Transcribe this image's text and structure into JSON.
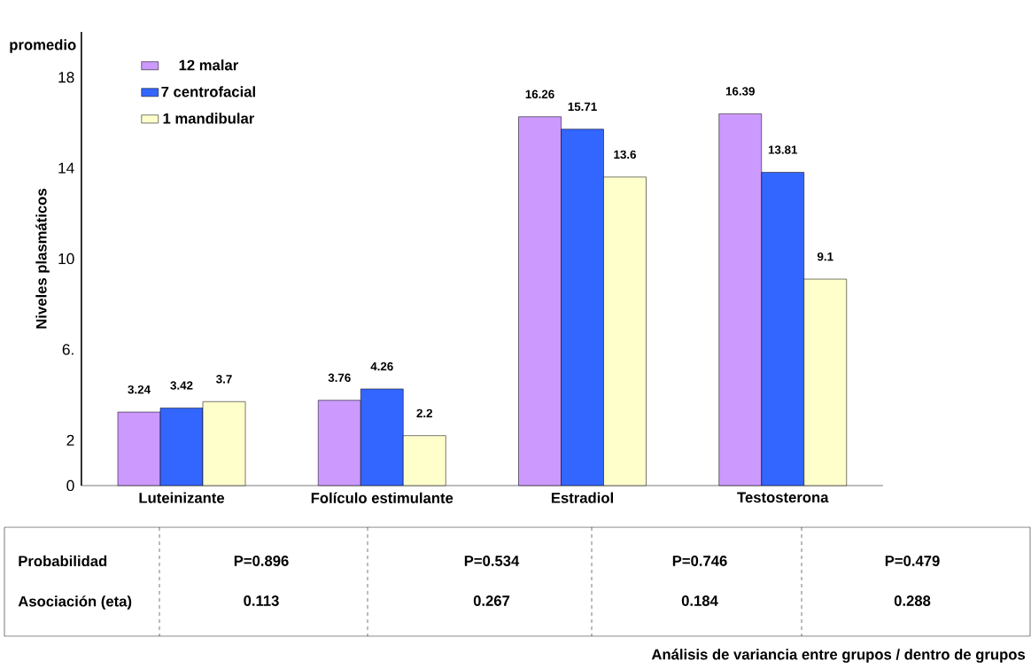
{
  "chart_data": {
    "type": "bar",
    "ylabel": "Niveles plasmáticos",
    "categories": [
      "Luteinizante",
      "Folículo estimulante",
      "Estradiol",
      "Testosterona"
    ],
    "series": [
      {
        "name": "12  malar",
        "color": "#cc99ff",
        "values": [
          3.24,
          3.76,
          16.26,
          16.39
        ]
      },
      {
        "name": "7   centrofacial",
        "color": "#3366ff",
        "values": [
          3.42,
          4.26,
          15.71,
          13.81
        ]
      },
      {
        "name": "1   mandibular",
        "color": "#ffffcc",
        "values": [
          3.7,
          2.2,
          13.6,
          9.1
        ]
      }
    ],
    "ylim": [
      0,
      20
    ],
    "yticks": [
      0,
      2,
      {
        "value": 6,
        "label": "6."
      },
      10,
      14,
      18
    ],
    "data_labels": true,
    "legend": "top left",
    "grid": false,
    "annotations": [
      "promedio",
      "Probabilidad",
      "Asociación (eta)",
      "P=0.896",
      "P=0.534",
      "P=0.746",
      "P=0.479",
      "0.113",
      "0.267",
      "0.184",
      "0.288",
      "Análisis de variancia entre grupos / dentro de grupos"
    ]
  }
}
